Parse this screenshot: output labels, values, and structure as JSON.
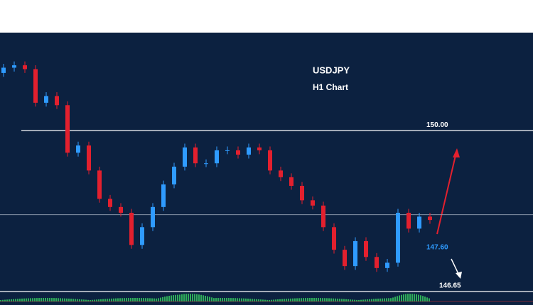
{
  "chart_data": {
    "type": "candlestick",
    "title": "USDJPY",
    "subtitle": "H1 Chart",
    "ylim": [
      146.37,
      152.04
    ],
    "open": [
      151.2,
      151.31,
      151.36,
      151.28,
      150.58,
      150.72,
      150.53,
      149.54,
      149.69,
      149.17,
      148.58,
      148.41,
      148.29,
      147.62,
      147.99,
      148.41,
      148.88,
      149.25,
      149.65,
      149.32,
      149.32,
      149.59,
      149.59,
      149.5,
      149.65,
      149.59,
      149.17,
      149.03,
      148.85,
      148.55,
      148.44,
      147.99,
      147.52,
      147.18,
      147.7,
      147.37,
      147.14,
      147.25,
      148.29,
      147.96,
      148.21
    ],
    "high": [
      151.39,
      151.44,
      151.44,
      151.36,
      150.8,
      150.8,
      150.61,
      149.77,
      149.77,
      149.25,
      148.66,
      148.49,
      148.37,
      148.07,
      148.49,
      148.96,
      149.33,
      149.73,
      149.73,
      149.4,
      149.67,
      149.67,
      149.67,
      149.73,
      149.73,
      149.67,
      149.25,
      149.11,
      148.93,
      148.63,
      148.52,
      148.07,
      147.6,
      147.78,
      147.78,
      147.45,
      147.33,
      148.37,
      148.37,
      148.29,
      148.29
    ],
    "low": [
      151.12,
      151.23,
      151.2,
      150.5,
      150.5,
      150.45,
      149.46,
      149.46,
      149.09,
      148.5,
      148.33,
      148.21,
      147.54,
      147.54,
      147.91,
      148.33,
      148.8,
      149.17,
      149.24,
      149.24,
      149.24,
      149.51,
      149.42,
      149.42,
      149.51,
      149.09,
      148.95,
      148.77,
      148.47,
      148.36,
      147.91,
      147.44,
      147.1,
      147.1,
      147.29,
      147.06,
      147.06,
      147.17,
      147.88,
      147.88,
      148.06
    ],
    "close": [
      151.31,
      151.36,
      151.28,
      150.58,
      150.72,
      150.53,
      149.54,
      149.69,
      149.17,
      148.58,
      148.41,
      148.29,
      147.62,
      147.99,
      148.41,
      148.88,
      149.25,
      149.65,
      149.32,
      149.32,
      149.59,
      149.59,
      149.5,
      149.65,
      149.59,
      149.17,
      149.03,
      148.85,
      148.55,
      148.44,
      147.99,
      147.52,
      147.18,
      147.7,
      147.37,
      147.14,
      147.25,
      148.29,
      147.96,
      148.21,
      148.14
    ],
    "up_color": "#2f9bff",
    "down_color": "#e3202e",
    "levels": [
      {
        "value": 150.0,
        "label": "150.00"
      },
      {
        "value": 146.65,
        "label": "146.65"
      }
    ],
    "midline": 148.25,
    "target": {
      "value": 147.6,
      "label": "147.60"
    }
  }
}
